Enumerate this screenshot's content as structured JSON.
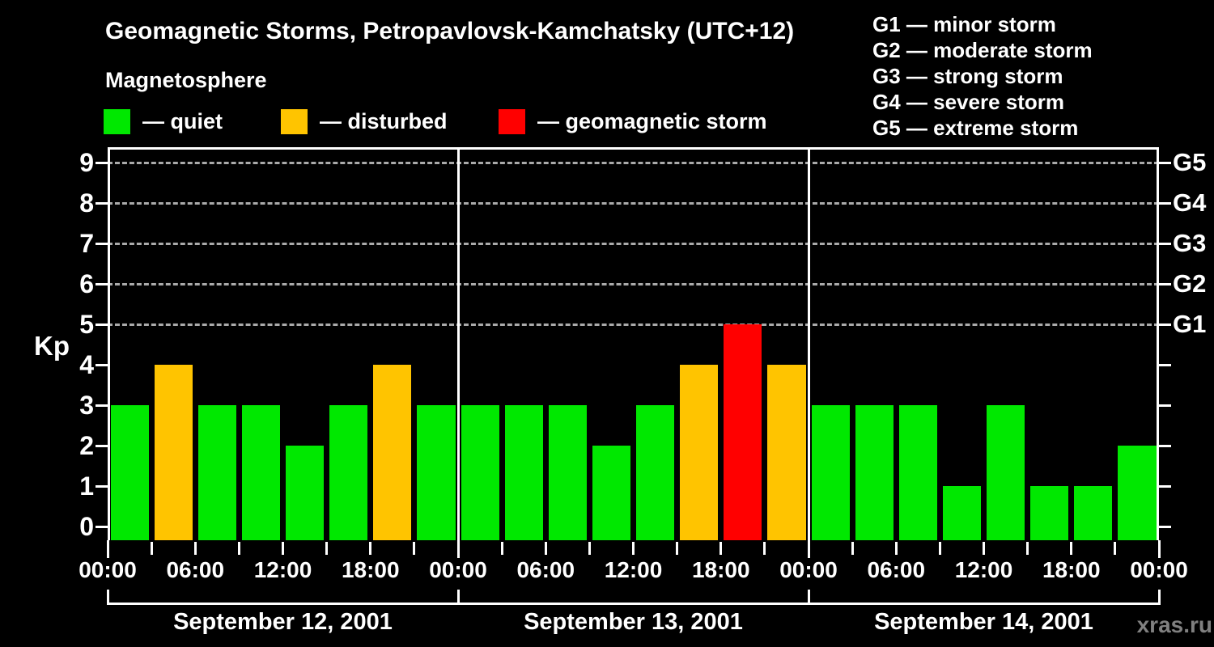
{
  "title": "Geomagnetic Storms, Petropavlovsk-Kamchatsky (UTC+12)",
  "subtitle": "Magnetosphere",
  "legend": {
    "items": [
      {
        "name": "quiet",
        "label": "— quiet",
        "color": "#00e800"
      },
      {
        "name": "disturbed",
        "label": "— disturbed",
        "color": "#ffc400"
      },
      {
        "name": "storm",
        "label": "— geomagnetic storm",
        "color": "#ff0000"
      }
    ]
  },
  "g_scale_legend": {
    "lines": [
      "G1 — minor storm",
      "G2 — moderate storm",
      "G3 — strong storm",
      "G4 — severe storm",
      "G5 — extreme storm"
    ]
  },
  "watermark": "xras.ru",
  "chart_data": {
    "type": "bar",
    "title": "Geomagnetic Storms, Petropavlovsk-Kamchatsky (UTC+12)",
    "ylabel": "Kp",
    "ylim": [
      0,
      9
    ],
    "yticks": [
      0,
      1,
      2,
      3,
      4,
      5,
      6,
      7,
      8,
      9
    ],
    "grid_levels_kp": [
      5,
      6,
      7,
      8,
      9
    ],
    "grid_style": "dashed",
    "right_axis": [
      {
        "label": "G5",
        "kp": 9
      },
      {
        "label": "G4",
        "kp": 8
      },
      {
        "label": "G3",
        "kp": 7
      },
      {
        "label": "G2",
        "kp": 6
      },
      {
        "label": "G1",
        "kp": 5
      }
    ],
    "hours_per_bar": 3,
    "x_tick_labels_6h": [
      "00:00",
      "06:00",
      "12:00",
      "18:00",
      "00:00",
      "06:00",
      "12:00",
      "18:00",
      "00:00",
      "06:00",
      "12:00",
      "18:00",
      "00:00"
    ],
    "days": [
      {
        "date": "September 12, 2001",
        "kp": [
          3,
          4,
          3,
          3,
          2,
          3,
          4,
          3
        ]
      },
      {
        "date": "September 13, 2001",
        "kp": [
          3,
          3,
          3,
          2,
          3,
          4,
          5,
          4
        ]
      },
      {
        "date": "September 14, 2001",
        "kp": [
          3,
          3,
          3,
          1,
          3,
          1,
          1,
          2
        ]
      }
    ],
    "colors": {
      "quiet": "#00e800",
      "disturbed": "#ffc400",
      "storm": "#ff0000",
      "quiet_max_kp": 3,
      "disturbed_max_kp": 4,
      "axis": "#ffffff",
      "grid": "#aaaaaa",
      "background": "#000000"
    }
  }
}
